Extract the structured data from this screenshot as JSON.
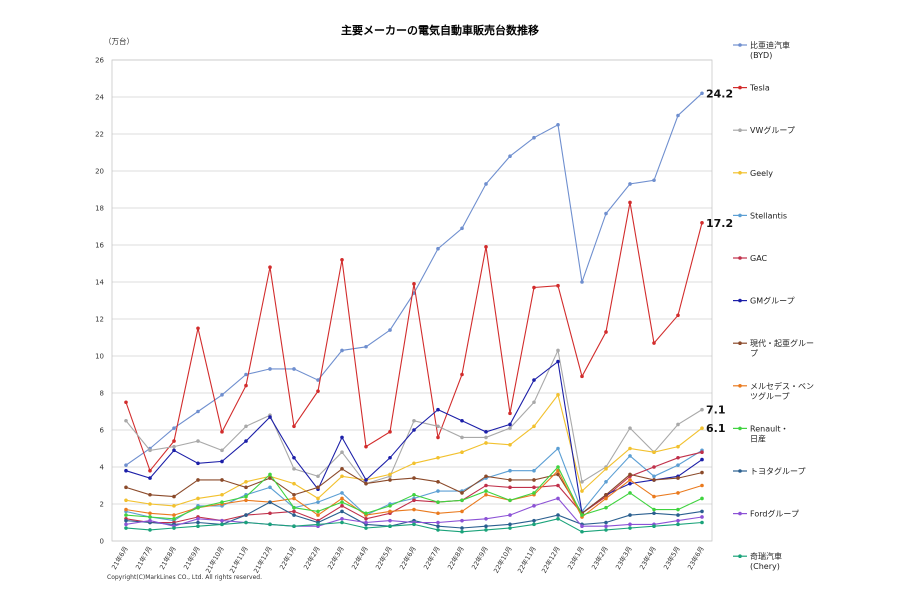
{
  "chart_data": {
    "type": "line",
    "title": "主要メーカーの電気自動車販売台数推移",
    "unit_label": "（万台）",
    "copyright": "Copyright(C)MarkLines CO., Ltd. All rights reserved.",
    "ylim": [
      0,
      26
    ],
    "yticks": [
      0,
      2,
      4,
      6,
      8,
      10,
      12,
      14,
      16,
      18,
      20,
      22,
      24,
      26
    ],
    "grid": true,
    "legend_position": "right",
    "categories": [
      "21年6月",
      "21年7月",
      "21年8月",
      "21年9月",
      "21年10月",
      "21年11月",
      "21年12月",
      "22年1月",
      "22年2月",
      "22年3月",
      "22年4月",
      "22年5月",
      "22年6月",
      "22年7月",
      "22年8月",
      "22年9月",
      "22年10月",
      "22年11月",
      "22年12月",
      "23年1月",
      "23年2月",
      "23年3月",
      "23年4月",
      "23年5月",
      "23年6月"
    ],
    "series": [
      {
        "name": "比亜迪汽車\n(BYD)",
        "color": "#6f8fcf",
        "values": [
          4.1,
          5.0,
          6.1,
          7.0,
          7.9,
          9.0,
          9.3,
          9.3,
          8.7,
          10.3,
          10.5,
          11.4,
          13.4,
          15.8,
          16.9,
          19.3,
          20.8,
          21.8,
          22.5,
          14.0,
          17.7,
          19.3,
          19.5,
          23.0,
          24.2
        ],
        "end_label": "24.2"
      },
      {
        "name": "Tesla",
        "color": "#d22c2c",
        "values": [
          7.5,
          3.8,
          5.4,
          11.5,
          5.9,
          8.4,
          14.8,
          6.2,
          8.1,
          15.2,
          5.1,
          5.9,
          13.9,
          5.6,
          9.0,
          15.9,
          6.9,
          13.7,
          13.8,
          8.9,
          11.3,
          18.3,
          10.7,
          12.2,
          17.2
        ],
        "end_label": "17.2"
      },
      {
        "name": "VWグループ",
        "color": "#a9a9a9",
        "values": [
          6.5,
          4.9,
          5.1,
          5.4,
          4.9,
          6.2,
          6.8,
          3.9,
          3.5,
          4.8,
          3.1,
          3.5,
          6.5,
          6.2,
          5.6,
          5.6,
          6.1,
          7.5,
          10.3,
          3.2,
          4.0,
          6.1,
          4.8,
          6.3,
          7.1
        ],
        "end_label": "7.1"
      },
      {
        "name": "Geely",
        "color": "#f2c12e",
        "values": [
          2.2,
          2.0,
          1.9,
          2.3,
          2.5,
          3.2,
          3.5,
          3.1,
          2.3,
          3.5,
          3.3,
          3.6,
          4.2,
          4.5,
          4.8,
          5.3,
          5.2,
          6.2,
          7.9,
          2.7,
          3.9,
          5.0,
          4.8,
          5.1,
          6.1
        ],
        "end_label": "6.1"
      },
      {
        "name": "Stellantis",
        "color": "#5c9fd4",
        "values": [
          1.6,
          1.3,
          1.1,
          1.9,
          1.9,
          2.5,
          2.9,
          1.8,
          2.1,
          2.6,
          1.4,
          2.0,
          2.3,
          2.7,
          2.7,
          3.4,
          3.8,
          3.8,
          5.0,
          1.6,
          3.2,
          4.6,
          3.5,
          4.1,
          4.9
        ],
        "end_label": ""
      },
      {
        "name": "GAC",
        "color": "#c0304a",
        "values": [
          1.2,
          1.0,
          1.0,
          1.3,
          1.1,
          1.4,
          1.5,
          1.6,
          1.1,
          1.9,
          1.2,
          1.5,
          2.2,
          2.1,
          2.2,
          3.0,
          2.9,
          2.9,
          3.0,
          1.5,
          2.4,
          3.5,
          4.0,
          4.5,
          4.8
        ],
        "end_label": ""
      },
      {
        "name": "GMグループ",
        "color": "#1c1fa8",
        "values": [
          3.8,
          3.4,
          4.9,
          4.2,
          4.3,
          5.4,
          6.7,
          4.5,
          2.8,
          5.6,
          3.3,
          4.5,
          6.0,
          7.1,
          6.5,
          5.9,
          6.3,
          8.7,
          9.7,
          1.5,
          2.5,
          3.1,
          3.3,
          3.5,
          4.4
        ],
        "end_label": ""
      },
      {
        "name": "現代・起亜グループ",
        "color": "#8b4a2a",
        "values": [
          2.9,
          2.5,
          2.4,
          3.3,
          3.3,
          2.9,
          3.4,
          2.5,
          2.9,
          3.9,
          3.1,
          3.3,
          3.4,
          3.2,
          2.6,
          3.5,
          3.3,
          3.3,
          3.6,
          1.5,
          2.5,
          3.6,
          3.3,
          3.4,
          3.7
        ],
        "end_label": ""
      },
      {
        "name": "メルセデス・ベンツグループ",
        "color": "#ea7a1e",
        "values": [
          1.7,
          1.5,
          1.4,
          1.8,
          2.0,
          2.2,
          2.1,
          2.3,
          1.4,
          2.3,
          1.4,
          1.6,
          1.7,
          1.5,
          1.6,
          2.5,
          2.2,
          2.5,
          3.8,
          1.3,
          2.3,
          3.3,
          2.4,
          2.6,
          3.0
        ],
        "end_label": ""
      },
      {
        "name": "Renault・日産",
        "color": "#40d340",
        "values": [
          1.4,
          1.3,
          1.2,
          1.8,
          2.1,
          2.4,
          3.6,
          1.8,
          1.6,
          2.1,
          1.5,
          1.9,
          2.5,
          2.1,
          2.2,
          2.7,
          2.2,
          2.6,
          4.0,
          1.4,
          1.8,
          2.6,
          1.7,
          1.7,
          2.3
        ],
        "end_label": ""
      },
      {
        "name": "トヨタグループ",
        "color": "#2a5f8f",
        "values": [
          1.1,
          1.0,
          0.9,
          1.0,
          0.9,
          1.4,
          2.1,
          1.4,
          1.0,
          1.6,
          0.9,
          0.8,
          1.1,
          0.8,
          0.7,
          0.8,
          0.9,
          1.1,
          1.4,
          0.9,
          1.0,
          1.4,
          1.5,
          1.4,
          1.6
        ],
        "end_label": ""
      },
      {
        "name": "Fordグループ",
        "color": "#8c52d6",
        "values": [
          0.9,
          1.1,
          0.8,
          1.2,
          1.1,
          1.0,
          0.9,
          0.8,
          0.8,
          1.2,
          1.0,
          1.1,
          1.0,
          1.0,
          1.1,
          1.2,
          1.4,
          1.9,
          2.3,
          0.8,
          0.8,
          0.9,
          0.9,
          1.1,
          1.3
        ],
        "end_label": ""
      },
      {
        "name": "奇瑞汽車\n(Chery)",
        "color": "#1aa37a",
        "values": [
          0.7,
          0.6,
          0.7,
          0.8,
          0.9,
          1.0,
          0.9,
          0.8,
          0.9,
          1.0,
          0.7,
          0.8,
          0.9,
          0.6,
          0.5,
          0.6,
          0.7,
          0.9,
          1.2,
          0.5,
          0.6,
          0.7,
          0.8,
          0.9,
          1.0
        ],
        "end_label": ""
      }
    ]
  }
}
